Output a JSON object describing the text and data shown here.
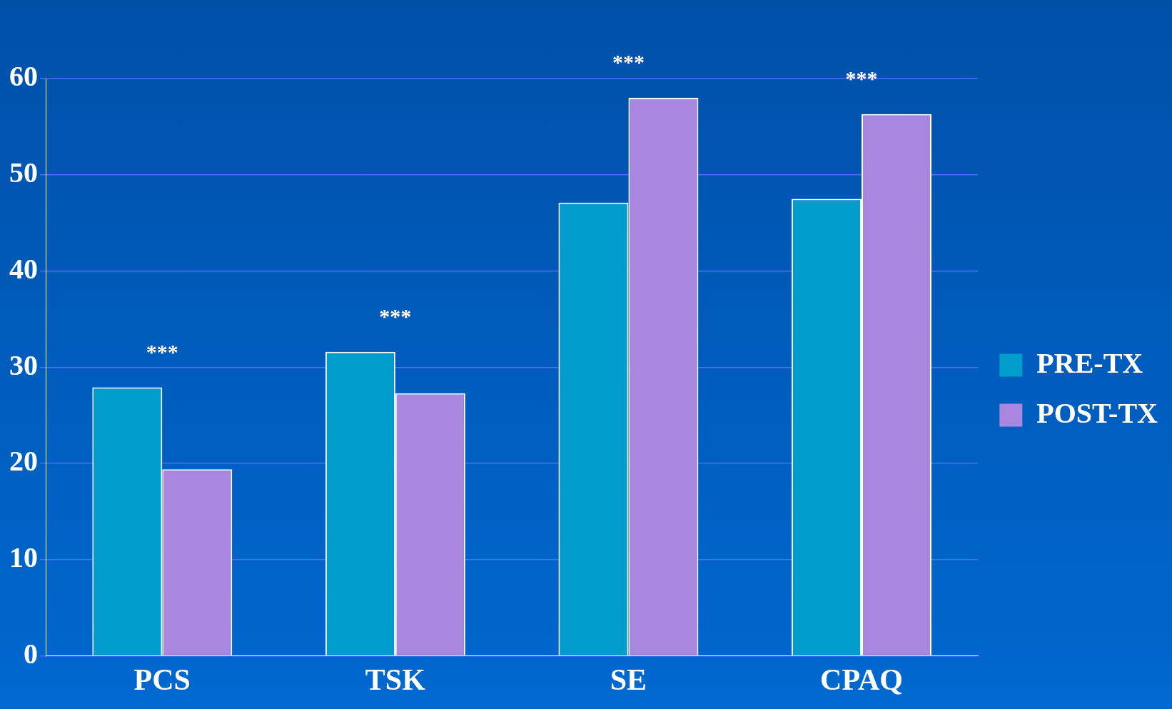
{
  "chart_data": {
    "type": "bar",
    "categories": [
      "PCS",
      "TSK",
      "SE",
      "CPAQ"
    ],
    "series": [
      {
        "name": "PRE-TX",
        "color": "#009ccc",
        "values": [
          27.9,
          31.6,
          47.1,
          47.5
        ]
      },
      {
        "name": "POST-TX",
        "color": "#a987df",
        "values": [
          19.4,
          27.3,
          58.0,
          56.3
        ]
      }
    ],
    "ylim": [
      0,
      60
    ],
    "yticks": [
      0,
      10,
      20,
      30,
      40,
      50,
      60
    ],
    "grid": "y",
    "legend": "right",
    "annotations": [
      "***",
      "***",
      "***",
      "***"
    ]
  }
}
